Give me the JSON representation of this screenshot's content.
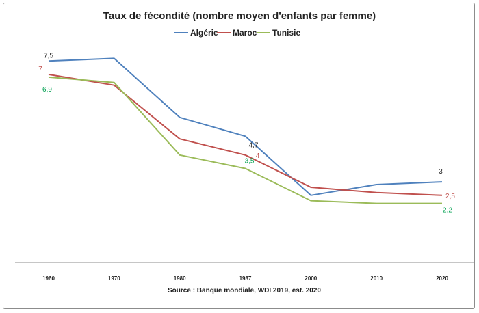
{
  "chart_data": {
    "type": "line",
    "title": "Taux de fécondité (nombre moyen d'enfants par femme)",
    "source": "Source : Banque mondiale,  WDI 2019, est. 2020",
    "categories": [
      "1960",
      "1970",
      "1980",
      "1987",
      "2000",
      "2010",
      "2020"
    ],
    "series": [
      {
        "name": "Algérie",
        "color": "#4f81bd",
        "values": [
          7.5,
          7.6,
          5.4,
          4.7,
          2.5,
          2.9,
          3.0
        ]
      },
      {
        "name": "Maroc",
        "color": "#c0504d",
        "values": [
          7.0,
          6.6,
          4.6,
          4.0,
          2.8,
          2.6,
          2.5
        ]
      },
      {
        "name": "Tunisie",
        "color": "#9bbb59",
        "values": [
          6.9,
          6.7,
          4.0,
          3.5,
          2.3,
          2.2,
          2.2
        ]
      }
    ],
    "data_labels": [
      {
        "series": 0,
        "index": 0,
        "text": "7,5",
        "color": "#222222"
      },
      {
        "series": 1,
        "index": 0,
        "text": "7",
        "color": "#c0504d"
      },
      {
        "series": 2,
        "index": 0,
        "text": "6,9",
        "color": "#00a050"
      },
      {
        "series": 0,
        "index": 3,
        "text": "4,7",
        "color": "#222222"
      },
      {
        "series": 1,
        "index": 3,
        "text": "4",
        "color": "#c0504d"
      },
      {
        "series": 2,
        "index": 3,
        "text": "3,5",
        "color": "#00a050"
      },
      {
        "series": 0,
        "index": 6,
        "text": "3",
        "color": "#222222"
      },
      {
        "series": 1,
        "index": 6,
        "text": "2,5",
        "color": "#c0504d"
      },
      {
        "series": 2,
        "index": 6,
        "text": "2,2",
        "color": "#00a050"
      }
    ],
    "ylim": [
      0,
      8.5
    ],
    "grid": false,
    "legend_position": "top"
  }
}
